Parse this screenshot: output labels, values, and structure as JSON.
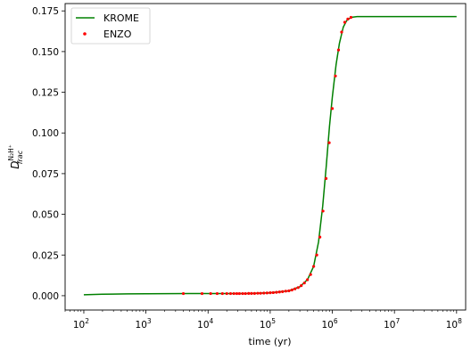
{
  "chart_data": {
    "type": "line",
    "title": "",
    "xlabel": "time (yr)",
    "ylabel": {
      "base": "D",
      "subscript": "frac",
      "superscript": "N₂H⁺"
    },
    "xscale": "log",
    "xlim": [
      50,
      140000000
    ],
    "ylim": [
      -0.0088,
      0.1795
    ],
    "x_ticks": [
      {
        "value": 100,
        "base": "10",
        "exp": "2"
      },
      {
        "value": 1000,
        "base": "10",
        "exp": "3"
      },
      {
        "value": 10000,
        "base": "10",
        "exp": "4"
      },
      {
        "value": 100000,
        "base": "10",
        "exp": "5"
      },
      {
        "value": 1000000,
        "base": "10",
        "exp": "6"
      },
      {
        "value": 10000000,
        "base": "10",
        "exp": "7"
      },
      {
        "value": 100000000,
        "base": "10",
        "exp": "8"
      }
    ],
    "y_ticks": [
      {
        "value": 0.0,
        "label": "0.000"
      },
      {
        "value": 0.025,
        "label": "0.025"
      },
      {
        "value": 0.05,
        "label": "0.050"
      },
      {
        "value": 0.075,
        "label": "0.075"
      },
      {
        "value": 0.1,
        "label": "0.100"
      },
      {
        "value": 0.125,
        "label": "0.125"
      },
      {
        "value": 0.15,
        "label": "0.150"
      },
      {
        "value": 0.175,
        "label": "0.175"
      }
    ],
    "grid": false,
    "legend_position": "top-left",
    "series": [
      {
        "name": "KROME",
        "kind": "line",
        "color": "#008000",
        "points": [
          [
            100,
            0.0006
          ],
          [
            200,
            0.0009
          ],
          [
            500,
            0.0011
          ],
          [
            1000,
            0.0012
          ],
          [
            5000,
            0.0013
          ],
          [
            20000,
            0.0013
          ],
          [
            50000,
            0.0014
          ],
          [
            100000,
            0.0018
          ],
          [
            200000,
            0.003
          ],
          [
            300000,
            0.0055
          ],
          [
            400000,
            0.01
          ],
          [
            500000,
            0.018
          ],
          [
            600000,
            0.033
          ],
          [
            700000,
            0.055
          ],
          [
            800000,
            0.08
          ],
          [
            900000,
            0.104
          ],
          [
            1000000,
            0.122
          ],
          [
            1150000,
            0.142
          ],
          [
            1300000,
            0.155
          ],
          [
            1500000,
            0.165
          ],
          [
            1700000,
            0.169
          ],
          [
            2000000,
            0.171
          ],
          [
            2500000,
            0.1715
          ],
          [
            5000000,
            0.1715
          ],
          [
            100000000,
            0.1715
          ]
        ]
      },
      {
        "name": "ENZO",
        "kind": "scatter",
        "color": "#ff0000",
        "x": [
          4000,
          8000,
          11000,
          14000,
          17000,
          20000,
          23000,
          26000,
          29000,
          32000,
          36000,
          40000,
          45000,
          50000,
          56000,
          63000,
          70000,
          79000,
          89000,
          100000,
          112000,
          126000,
          141000,
          158000,
          178000,
          200000,
          224000,
          251000,
          282000,
          316000,
          355000,
          398000,
          447000,
          501000,
          562000,
          631000,
          708000,
          794000,
          891000,
          1000000,
          1122000,
          1259000,
          1413000,
          1585000,
          1778000,
          1995000
        ],
        "y": [
          0.0013,
          0.0013,
          0.0013,
          0.0013,
          0.0013,
          0.0013,
          0.0013,
          0.0013,
          0.0013,
          0.0013,
          0.0013,
          0.0013,
          0.0014,
          0.0014,
          0.0014,
          0.0015,
          0.0015,
          0.0016,
          0.0017,
          0.0018,
          0.0019,
          0.0021,
          0.0023,
          0.0025,
          0.0028,
          0.003,
          0.0035,
          0.0042,
          0.005,
          0.0062,
          0.0078,
          0.0098,
          0.013,
          0.018,
          0.025,
          0.036,
          0.052,
          0.072,
          0.094,
          0.115,
          0.135,
          0.151,
          0.162,
          0.168,
          0.17,
          0.171
        ]
      }
    ]
  }
}
